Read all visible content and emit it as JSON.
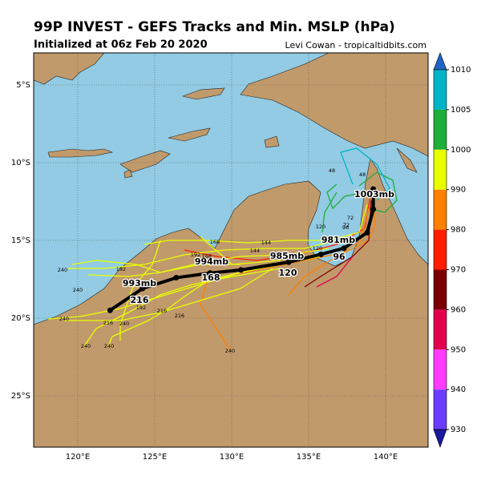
{
  "header": {
    "title": "99P INVEST - GEFS Tracks and Min. MSLP (hPa)",
    "subtitle": "Initialized at 06z Feb 20 2020",
    "credit": "Levi Cowan - tropicaltidbits.com"
  },
  "map": {
    "lon_ticks": [
      {
        "value": 120,
        "label": "120°E"
      },
      {
        "value": 125,
        "label": "125°E"
      },
      {
        "value": 130,
        "label": "130°E"
      },
      {
        "value": 135,
        "label": "135°E"
      },
      {
        "value": 140,
        "label": "140°E"
      }
    ],
    "lat_ticks": [
      {
        "value": -5,
        "label": "5°S"
      },
      {
        "value": -10,
        "label": "10°S"
      },
      {
        "value": -15,
        "label": "15°S"
      },
      {
        "value": -20,
        "label": "20°S"
      },
      {
        "value": -25,
        "label": "25°S"
      }
    ],
    "mean_track": {
      "lon": [
        139.2,
        139.2,
        138.8,
        137.3,
        135.8,
        133.7,
        130.6,
        128.6,
        126.4,
        124.2,
        122.1
      ],
      "lat": [
        -11.7,
        -13.0,
        -14.5,
        -15.5,
        -15.9,
        -16.4,
        -16.9,
        -17.1,
        -17.4,
        -18.1,
        -19.5
      ]
    },
    "pressure_labels": [
      "1003mb",
      "981mb",
      "985mb",
      "994mb",
      "993mb"
    ],
    "hour_labels": [
      "96",
      "120",
      "168",
      "216"
    ],
    "member_labels": [
      "48",
      "48",
      "72",
      "72",
      "96",
      "120",
      "120",
      "144",
      "144",
      "168",
      "168",
      "192",
      "192",
      "192",
      "216",
      "216",
      "216",
      "240",
      "240",
      "240",
      "240",
      "240",
      "240",
      "240"
    ]
  },
  "colorbar": {
    "ticks": [
      1010,
      1005,
      1000,
      990,
      980,
      970,
      960,
      950,
      940,
      930
    ],
    "colors": [
      "#00b4c8",
      "#1fae3a",
      "#e8ff00",
      "#ff7f00",
      "#ff1e00",
      "#7a0000",
      "#e0004c",
      "#ff3cff",
      "#6a3cff"
    ],
    "top_color": "#1e64c8",
    "bottom_color": "#1a1aa0"
  }
}
